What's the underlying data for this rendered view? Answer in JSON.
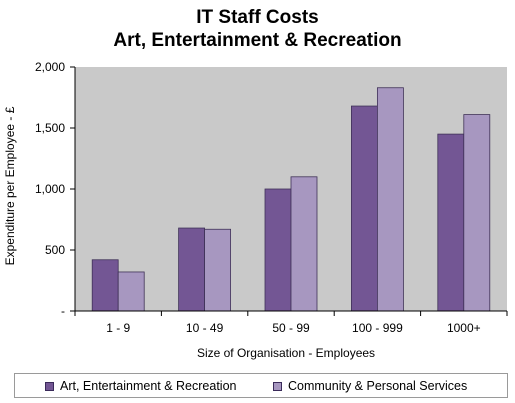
{
  "chart_data": {
    "type": "bar",
    "title": "IT Staff Costs",
    "subtitle": "Art, Entertainment & Recreation",
    "xlabel": "Size of Organisation - Employees",
    "ylabel": "Expenditure per Employee - £",
    "categories": [
      "1 - 9",
      "10 - 49",
      "50 - 99",
      "100 - 999",
      "1000+"
    ],
    "ylim": [
      0,
      2000
    ],
    "yticks": [
      "-",
      "500",
      "1,000",
      "1,500",
      "2,000"
    ],
    "ytick_values": [
      0,
      500,
      1000,
      1500,
      2000
    ],
    "grid": false,
    "legend_position": "bottom",
    "series": [
      {
        "name": "Art, Entertainment & Recreation",
        "color": "#735694",
        "values": [
          420,
          680,
          1000,
          1680,
          1450
        ]
      },
      {
        "name": "Community & Personal Services",
        "color": "#a797c0",
        "values": [
          320,
          670,
          1100,
          1830,
          1610
        ]
      }
    ],
    "plot_background": "#c9c9c9"
  }
}
